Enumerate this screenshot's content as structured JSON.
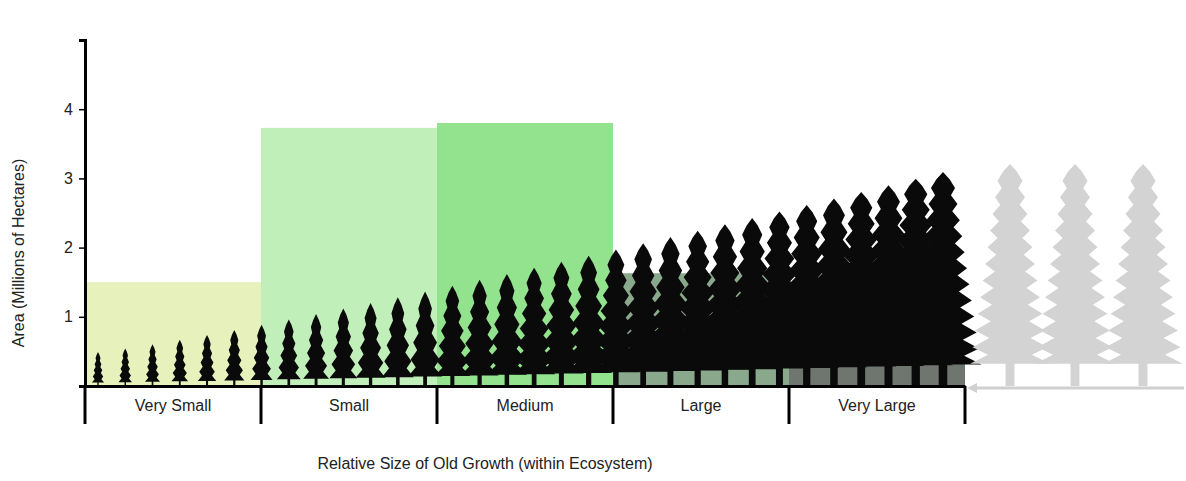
{
  "chart_data": {
    "type": "bar",
    "x_label": "Relative Size of Old Growth (within Ecosystem)",
    "y_label": "Area (Millions of Hectares)",
    "categories": [
      "Very Small",
      "Small",
      "Medium",
      "Large",
      "Very Large"
    ],
    "values": [
      1.5,
      3.73,
      3.8,
      1.63,
      0.32
    ],
    "colors": [
      "#e4efb4",
      "#b9edb3",
      "#86df82",
      "#7d9f80",
      "#5f675f"
    ],
    "ylim": [
      0,
      5
    ],
    "yticks": [
      1,
      2,
      3,
      4
    ],
    "grid": false
  }
}
